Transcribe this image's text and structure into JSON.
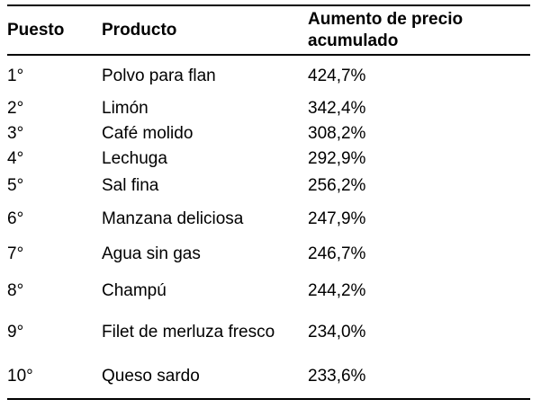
{
  "chart_data": {
    "type": "table",
    "title": "",
    "columns": [
      "Puesto",
      "Producto",
      "Aumento de precio acumulado"
    ],
    "rows": [
      [
        "1°",
        "Polvo para flan",
        "424,7%"
      ],
      [
        "2°",
        "Limón",
        "342,4%"
      ],
      [
        "3°",
        "Café molido",
        "308,2%"
      ],
      [
        "4°",
        "Lechuga",
        "292,9%"
      ],
      [
        "5°",
        "Sal fina",
        "256,2%"
      ],
      [
        "6°",
        "Manzana deliciosa",
        "247,9%"
      ],
      [
        "7°",
        "Agua sin gas",
        "246,7%"
      ],
      [
        "8°",
        "Champú",
        "244,2%"
      ],
      [
        "9°",
        "Filet de merluza fresco",
        "234,0%"
      ],
      [
        "10°",
        "Queso sardo",
        "233,6%"
      ]
    ],
    "values_numeric_pct": [
      424.7,
      342.4,
      308.2,
      292.9,
      256.2,
      247.9,
      246.7,
      244.2,
      234.0,
      233.6
    ],
    "layout_hints": {
      "grid": "horizontal rules: top border, header separator, bottom border only",
      "alignment": "all columns left-aligned"
    },
    "colors": {
      "text": "#000000",
      "background": "#ffffff",
      "border": "#000000"
    }
  }
}
